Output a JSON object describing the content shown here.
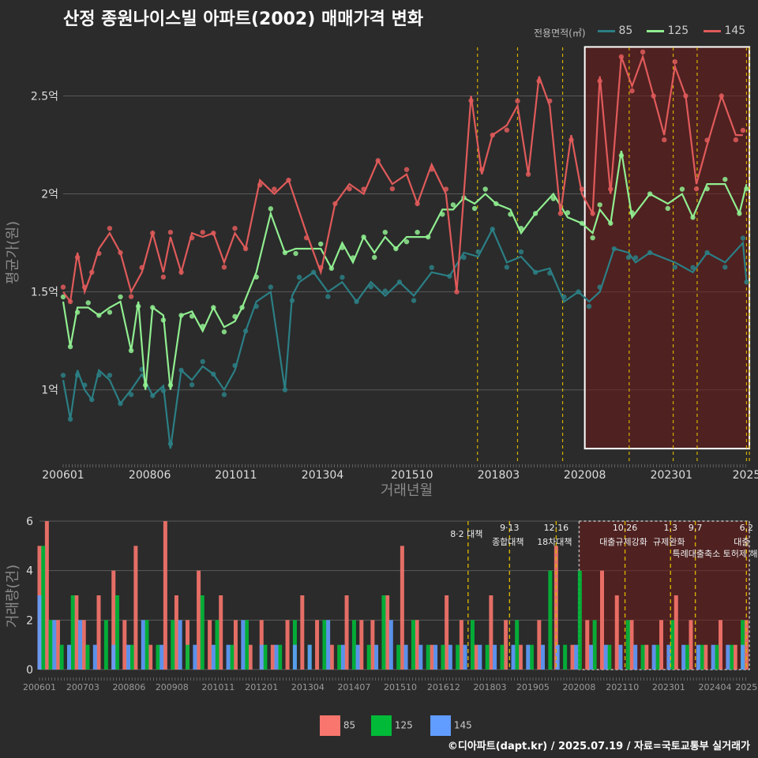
{
  "title": "산정 종원나이스빌 아파트(2002) 매매가격 변화",
  "footer": "©디아파트(dapt.kr) / 2025.07.19 / 자료=국토교통부 실거래가",
  "colors": {
    "s85": "#2b7f85",
    "s125": "#90ee90",
    "s145": "#e05a5a",
    "b85": "#f8766d",
    "b125": "#00ba38",
    "b145": "#619cff",
    "event": "#d4b000",
    "highlight": "#ffffff"
  },
  "legend_top": {
    "title": "전용면적(㎡)",
    "items": [
      {
        "label": "85",
        "color": "#2b7f85"
      },
      {
        "label": "125",
        "color": "#90ee90"
      },
      {
        "label": "145",
        "color": "#e05a5a"
      }
    ]
  },
  "legend_bottom": {
    "items": [
      {
        "label": "85",
        "color": "#f8766d"
      },
      {
        "label": "125",
        "color": "#00ba38"
      },
      {
        "label": "145",
        "color": "#619cff"
      }
    ]
  },
  "chart_data": [
    {
      "type": "line",
      "xlabel": "거래년월",
      "ylabel": "평균가(원)",
      "xlim": [
        2006.0,
        2025.2
      ],
      "ylim": [
        0.62,
        2.78
      ],
      "x_ticks": [
        {
          "label": "200601",
          "x": 2006.0
        },
        {
          "label": "200806",
          "x": 2008.42
        },
        {
          "label": "201011",
          "x": 2010.83
        },
        {
          "label": "201304",
          "x": 2013.25
        },
        {
          "label": "201510",
          "x": 2015.75
        },
        {
          "label": "201803",
          "x": 2018.17
        },
        {
          "label": "202008",
          "x": 2020.58
        },
        {
          "label": "202301",
          "x": 2023.0
        },
        {
          "label": "2025",
          "x": 2025.1
        }
      ],
      "y_ticks": [
        {
          "label": "1억",
          "y": 1.0
        },
        {
          "label": "1.5억",
          "y": 1.5
        },
        {
          "label": "2억",
          "y": 2.0
        },
        {
          "label": "2.5억",
          "y": 2.5
        }
      ],
      "event_lines": [
        2017.58,
        2018.7,
        2019.96,
        2021.82,
        2023.05,
        2023.72,
        2025.1,
        2025.18
      ],
      "highlight_range": [
        2020.58,
        2025.18
      ],
      "highlight_y": [
        0.7,
        2.75
      ],
      "series": [
        {
          "name": "85",
          "x": [
            2006.0,
            2006.2,
            2006.4,
            2006.6,
            2006.8,
            2007.0,
            2007.3,
            2007.6,
            2007.9,
            2008.2,
            2008.5,
            2008.8,
            2009.0,
            2009.3,
            2009.6,
            2009.9,
            2010.2,
            2010.5,
            2010.8,
            2011.1,
            2011.4,
            2011.8,
            2012.2,
            2012.4,
            2012.6,
            2013.0,
            2013.4,
            2013.8,
            2014.2,
            2014.6,
            2015.0,
            2015.4,
            2015.8,
            2016.3,
            2016.8,
            2017.2,
            2017.6,
            2018.0,
            2018.4,
            2018.8,
            2019.2,
            2019.6,
            2020.0,
            2020.4,
            2020.7,
            2021.0,
            2021.4,
            2021.8,
            2022.0,
            2022.4,
            2023.1,
            2023.6,
            2024.0,
            2024.5,
            2025.0,
            2025.1
          ],
          "y": [
            1.05,
            0.85,
            1.1,
            1.0,
            0.95,
            1.1,
            1.05,
            0.93,
            1.0,
            1.08,
            0.97,
            1.02,
            0.7,
            1.1,
            1.05,
            1.12,
            1.08,
            1.0,
            1.1,
            1.3,
            1.45,
            1.5,
            1.0,
            1.48,
            1.55,
            1.6,
            1.5,
            1.55,
            1.45,
            1.55,
            1.48,
            1.55,
            1.48,
            1.6,
            1.58,
            1.7,
            1.68,
            1.82,
            1.65,
            1.68,
            1.6,
            1.62,
            1.45,
            1.5,
            1.45,
            1.5,
            1.72,
            1.7,
            1.65,
            1.7,
            1.65,
            1.6,
            1.7,
            1.65,
            1.75,
            1.55
          ]
        },
        {
          "name": "125",
          "x": [
            2006.0,
            2006.2,
            2006.4,
            2006.7,
            2007.0,
            2007.3,
            2007.6,
            2007.9,
            2008.1,
            2008.3,
            2008.5,
            2008.8,
            2009.0,
            2009.3,
            2009.6,
            2009.9,
            2010.2,
            2010.5,
            2010.8,
            2011.0,
            2011.4,
            2011.8,
            2012.2,
            2012.5,
            2013.2,
            2013.5,
            2013.8,
            2014.1,
            2014.4,
            2014.7,
            2015.0,
            2015.3,
            2015.6,
            2015.9,
            2016.2,
            2016.6,
            2016.9,
            2017.2,
            2017.5,
            2017.8,
            2018.1,
            2018.5,
            2018.8,
            2019.2,
            2019.7,
            2020.1,
            2020.5,
            2020.8,
            2021.0,
            2021.3,
            2021.6,
            2021.9,
            2022.4,
            2022.9,
            2023.3,
            2023.6,
            2024.0,
            2024.5,
            2024.9,
            2025.1
          ],
          "y": [
            1.45,
            1.22,
            1.42,
            1.42,
            1.38,
            1.42,
            1.45,
            1.2,
            1.45,
            1.0,
            1.42,
            1.38,
            1.0,
            1.38,
            1.4,
            1.3,
            1.42,
            1.32,
            1.35,
            1.42,
            1.6,
            1.9,
            1.7,
            1.72,
            1.72,
            1.62,
            1.75,
            1.65,
            1.78,
            1.7,
            1.78,
            1.72,
            1.78,
            1.78,
            1.78,
            1.92,
            1.92,
            1.98,
            1.95,
            2.0,
            1.95,
            1.92,
            1.8,
            1.9,
            2.0,
            1.88,
            1.85,
            1.8,
            1.92,
            1.85,
            2.22,
            1.88,
            2.0,
            1.95,
            2.0,
            1.88,
            2.05,
            2.05,
            1.9,
            2.05
          ]
        },
        {
          "name": "145",
          "x": [
            2006.0,
            2006.2,
            2006.4,
            2006.6,
            2006.8,
            2007.0,
            2007.3,
            2007.6,
            2007.9,
            2008.2,
            2008.5,
            2008.8,
            2009.0,
            2009.3,
            2009.6,
            2009.9,
            2010.2,
            2010.5,
            2010.8,
            2011.1,
            2011.5,
            2011.9,
            2012.3,
            2012.8,
            2013.2,
            2013.6,
            2014.0,
            2014.4,
            2014.8,
            2015.2,
            2015.6,
            2015.9,
            2016.3,
            2016.7,
            2017.0,
            2017.4,
            2017.7,
            2018.0,
            2018.4,
            2018.7,
            2019.0,
            2019.3,
            2019.6,
            2019.9,
            2020.2,
            2020.5,
            2020.8,
            2021.0,
            2021.3,
            2021.6,
            2021.9,
            2022.2,
            2022.5,
            2022.8,
            2023.1,
            2023.4,
            2023.7,
            2024.0,
            2024.4,
            2024.8,
            2025.0
          ],
          "y": [
            1.5,
            1.45,
            1.7,
            1.5,
            1.6,
            1.72,
            1.8,
            1.7,
            1.5,
            1.6,
            1.8,
            1.6,
            1.78,
            1.6,
            1.8,
            1.78,
            1.8,
            1.65,
            1.8,
            1.72,
            2.07,
            2.0,
            2.07,
            1.8,
            1.6,
            1.95,
            2.05,
            2.0,
            2.17,
            2.05,
            2.1,
            1.95,
            2.15,
            2.0,
            1.5,
            2.5,
            2.1,
            2.3,
            2.35,
            2.45,
            2.1,
            2.6,
            2.45,
            1.9,
            2.3,
            2.0,
            1.9,
            2.6,
            2.0,
            2.7,
            2.55,
            2.7,
            2.5,
            2.3,
            2.65,
            2.5,
            2.05,
            2.25,
            2.5,
            2.3,
            2.3
          ]
        }
      ]
    },
    {
      "type": "bar",
      "ylabel": "거래량(건)",
      "xlim": [
        2006.0,
        2025.2
      ],
      "ylim": [
        0,
        6
      ],
      "x_ticks": [
        {
          "label": "200601",
          "x": 2006.0
        },
        {
          "label": "200703",
          "x": 2007.17
        },
        {
          "label": "200806",
          "x": 2008.42
        },
        {
          "label": "200908",
          "x": 2009.58
        },
        {
          "label": "201011",
          "x": 2010.83
        },
        {
          "label": "201201",
          "x": 2012.0
        },
        {
          "label": "201304",
          "x": 2013.25
        },
        {
          "label": "201407",
          "x": 2014.5
        },
        {
          "label": "201510",
          "x": 2015.75
        },
        {
          "label": "201612",
          "x": 2016.92
        },
        {
          "label": "201803",
          "x": 2018.17
        },
        {
          "label": "201905",
          "x": 2019.33
        },
        {
          "label": "202008",
          "x": 2020.58
        },
        {
          "label": "202110",
          "x": 2021.75
        },
        {
          "label": "202301",
          "x": 2023.0
        },
        {
          "label": "202404",
          "x": 2024.25
        },
        {
          "label": "2025",
          "x": 2025.1
        }
      ],
      "y_ticks": [
        0,
        2,
        4,
        6
      ],
      "events": [
        {
          "x": 2017.58,
          "date": "",
          "label": "8·2 대책"
        },
        {
          "x": 2018.7,
          "date": "9·13",
          "label": "종합대책"
        },
        {
          "x": 2019.96,
          "date": "12·16",
          "label": "18차대책"
        },
        {
          "x": 2021.82,
          "date": "10.26",
          "label": "대출규제강화"
        },
        {
          "x": 2023.05,
          "date": "1.3",
          "label": "규제완화"
        },
        {
          "x": 2023.72,
          "date": "9.7",
          "label": "특례대출축소 토허제 해제"
        },
        {
          "x": 2025.1,
          "date": "6.2",
          "label": "대출"
        }
      ],
      "highlight_range": [
        2020.58,
        2025.18
      ],
      "series": [
        {
          "name": "85",
          "x": [
            2006.0,
            2006.2,
            2006.5,
            2007.0,
            2007.2,
            2007.6,
            2008.0,
            2008.3,
            2008.6,
            2009.0,
            2009.4,
            2009.7,
            2010.0,
            2010.3,
            2010.6,
            2010.9,
            2011.3,
            2011.7,
            2012.0,
            2012.3,
            2012.7,
            2013.1,
            2013.5,
            2013.9,
            2014.3,
            2014.7,
            2015.0,
            2015.4,
            2015.8,
            2016.2,
            2016.6,
            2017.0,
            2017.4,
            2017.8,
            2018.2,
            2018.6,
            2019.0,
            2019.5,
            2019.96,
            2020.4,
            2020.8,
            2021.2,
            2021.6,
            2022.0,
            2022.4,
            2022.8,
            2023.2,
            2023.6,
            2024.0,
            2024.4,
            2024.8,
            2025.1
          ],
          "y": [
            5,
            6,
            2,
            3,
            2,
            3,
            4,
            2,
            5,
            1,
            6,
            3,
            2,
            4,
            2,
            3,
            2,
            1,
            2,
            1,
            2,
            3,
            2,
            1,
            3,
            2,
            2,
            3,
            5,
            2,
            1,
            3,
            2,
            1,
            3,
            2,
            1,
            2,
            5,
            1,
            2,
            4,
            3,
            2,
            1,
            2,
            3,
            2,
            1,
            2,
            1,
            2
          ]
        },
        {
          "name": "125",
          "x": [
            2006.1,
            2006.3,
            2006.6,
            2006.9,
            2007.3,
            2007.8,
            2008.1,
            2008.5,
            2008.9,
            2009.2,
            2009.6,
            2010.0,
            2010.4,
            2010.8,
            2011.2,
            2011.6,
            2012.1,
            2012.5,
            2012.9,
            2013.3,
            2013.7,
            2014.1,
            2014.5,
            2014.9,
            2015.3,
            2015.7,
            2016.1,
            2016.5,
            2016.9,
            2017.3,
            2017.7,
            2018.1,
            2018.5,
            2018.9,
            2019.3,
            2019.8,
            2020.2,
            2020.6,
            2021.0,
            2021.4,
            2021.9,
            2022.3,
            2022.7,
            2023.1,
            2023.5,
            2023.9,
            2024.3,
            2024.7,
            2025.0
          ],
          "y": [
            5,
            2,
            1,
            3,
            1,
            2,
            3,
            1,
            2,
            1,
            2,
            1,
            3,
            2,
            1,
            2,
            1,
            1,
            2,
            1,
            2,
            1,
            2,
            1,
            3,
            1,
            2,
            1,
            1,
            1,
            2,
            1,
            1,
            2,
            1,
            4,
            1,
            4,
            2,
            1,
            2,
            1,
            1,
            2,
            1,
            1,
            1,
            1,
            2
          ]
        },
        {
          "name": "145",
          "x": [
            2006.0,
            2006.4,
            2006.8,
            2007.1,
            2007.5,
            2008.0,
            2008.4,
            2008.8,
            2009.3,
            2009.8,
            2010.2,
            2010.7,
            2011.1,
            2011.5,
            2012.0,
            2012.4,
            2012.9,
            2013.3,
            2013.8,
            2014.2,
            2014.6,
            2015.1,
            2015.5,
            2015.9,
            2016.3,
            2016.7,
            2017.1,
            2017.5,
            2017.9,
            2018.3,
            2018.8,
            2019.2,
            2019.6,
            2020.0,
            2020.5,
            2020.9,
            2021.3,
            2021.7,
            2022.1,
            2022.6,
            2023.0,
            2023.4,
            2023.8,
            2024.2,
            2024.6,
            2025.0
          ],
          "y": [
            3,
            2,
            1,
            2,
            1,
            1,
            1,
            2,
            1,
            2,
            1,
            1,
            1,
            2,
            1,
            1,
            1,
            1,
            2,
            1,
            1,
            1,
            2,
            1,
            1,
            1,
            1,
            1,
            1,
            1,
            1,
            1,
            1,
            1,
            1,
            1,
            1,
            1,
            1,
            1,
            1,
            1,
            1,
            1,
            1,
            1
          ]
        }
      ]
    }
  ]
}
